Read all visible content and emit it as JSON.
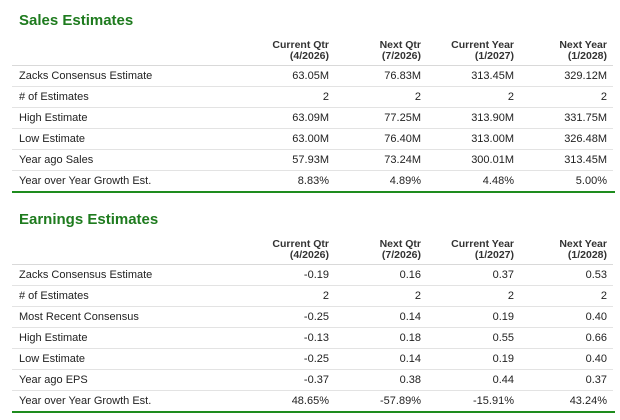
{
  "colors": {
    "title_green": "#1e7b1e",
    "divider_green": "#1e8c1e",
    "row_border": "#e3e3e3"
  },
  "sales": {
    "title": "Sales Estimates",
    "headers": [
      {
        "line1": "Current Qtr",
        "line2": "(4/2026)"
      },
      {
        "line1": "Next Qtr",
        "line2": "(7/2026)"
      },
      {
        "line1": "Current Year",
        "line2": "(1/2027)"
      },
      {
        "line1": "Next Year",
        "line2": "(1/2028)"
      }
    ],
    "rows": [
      {
        "label": "Zacks Consensus Estimate",
        "values": [
          "63.05M",
          "76.83M",
          "313.45M",
          "329.12M"
        ]
      },
      {
        "label": "# of Estimates",
        "values": [
          "2",
          "2",
          "2",
          "2"
        ]
      },
      {
        "label": "High Estimate",
        "values": [
          "63.09M",
          "77.25M",
          "313.90M",
          "331.75M"
        ]
      },
      {
        "label": "Low Estimate",
        "values": [
          "63.00M",
          "76.40M",
          "313.00M",
          "326.48M"
        ]
      },
      {
        "label": "Year ago Sales",
        "values": [
          "57.93M",
          "73.24M",
          "300.01M",
          "313.45M"
        ]
      },
      {
        "label": "Year over Year Growth Est.",
        "values": [
          "8.83%",
          "4.89%",
          "4.48%",
          "5.00%"
        ]
      }
    ]
  },
  "earnings": {
    "title": "Earnings Estimates",
    "headers": [
      {
        "line1": "Current Qtr",
        "line2": "(4/2026)"
      },
      {
        "line1": "Next Qtr",
        "line2": "(7/2026)"
      },
      {
        "line1": "Current Year",
        "line2": "(1/2027)"
      },
      {
        "line1": "Next Year",
        "line2": "(1/2028)"
      }
    ],
    "rows": [
      {
        "label": "Zacks Consensus Estimate",
        "values": [
          "-0.19",
          "0.16",
          "0.37",
          "0.53"
        ]
      },
      {
        "label": "# of Estimates",
        "values": [
          "2",
          "2",
          "2",
          "2"
        ]
      },
      {
        "label": "Most Recent Consensus",
        "values": [
          "-0.25",
          "0.14",
          "0.19",
          "0.40"
        ]
      },
      {
        "label": "High Estimate",
        "values": [
          "-0.13",
          "0.18",
          "0.55",
          "0.66"
        ]
      },
      {
        "label": "Low Estimate",
        "values": [
          "-0.25",
          "0.14",
          "0.19",
          "0.40"
        ]
      },
      {
        "label": "Year ago EPS",
        "values": [
          "-0.37",
          "0.38",
          "0.44",
          "0.37"
        ]
      },
      {
        "label": "Year over Year Growth Est.",
        "values": [
          "48.65%",
          "-57.89%",
          "-15.91%",
          "43.24%"
        ]
      }
    ]
  }
}
